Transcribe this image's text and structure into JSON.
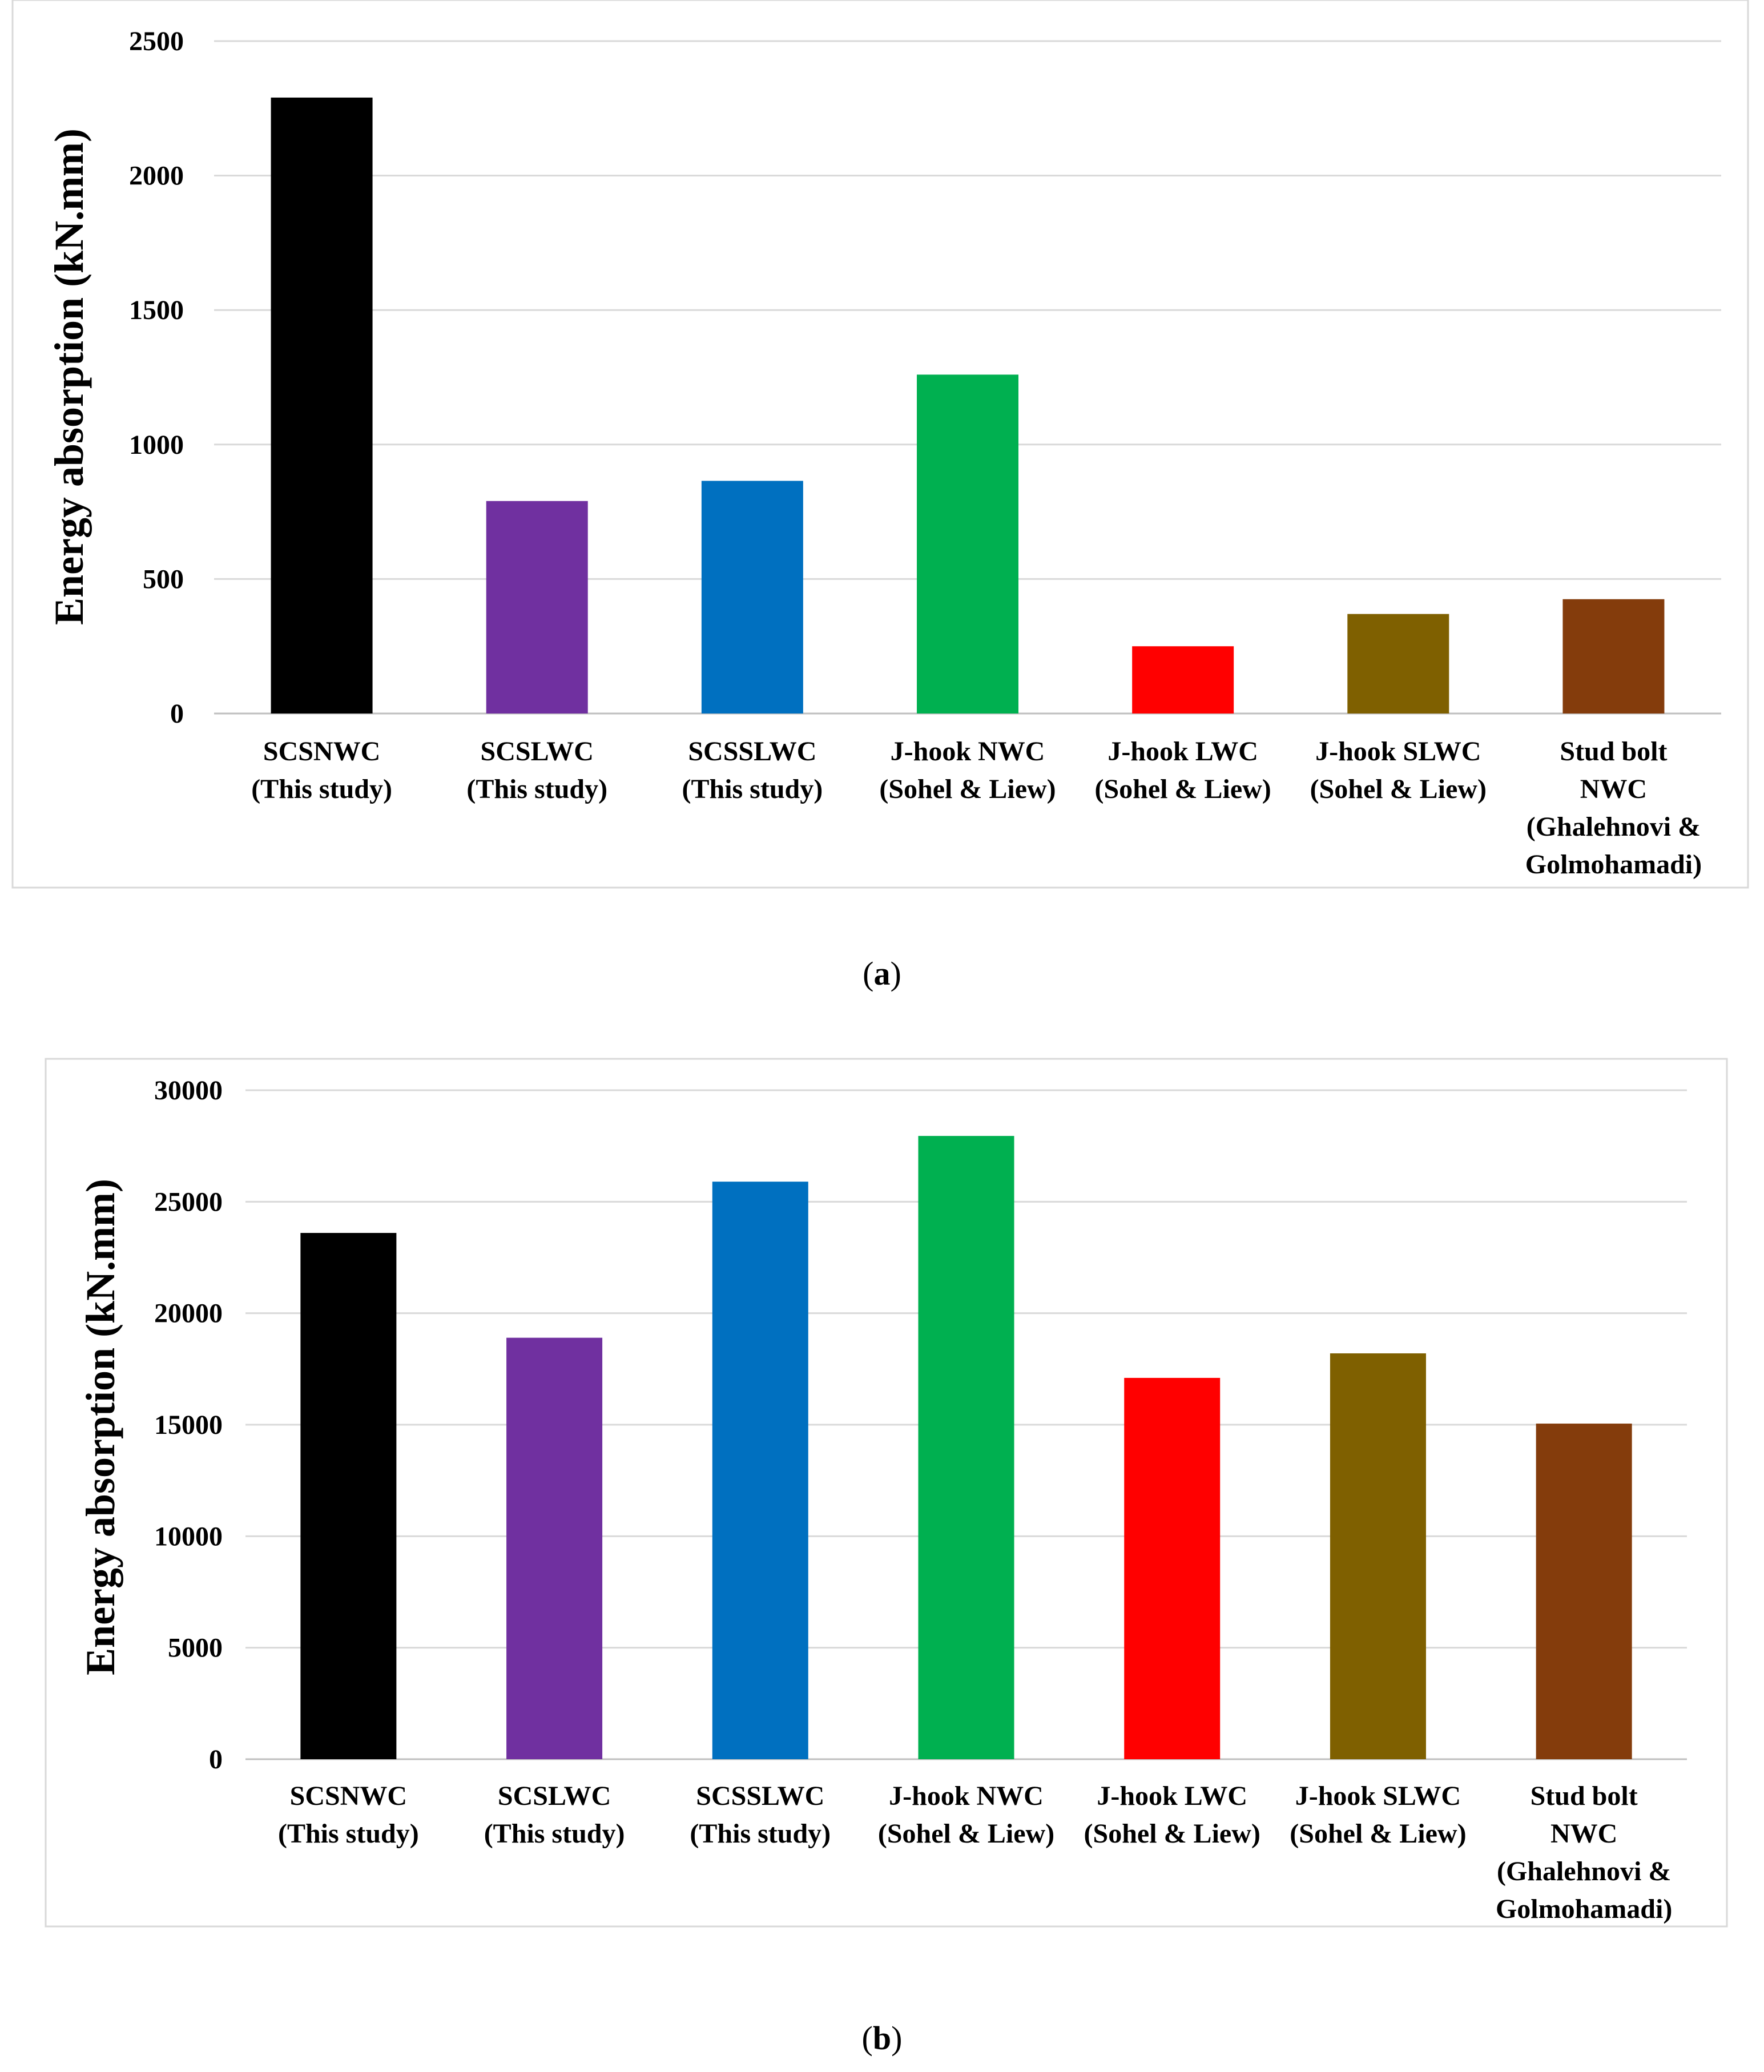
{
  "chart_data": [
    {
      "type": "bar",
      "panel_label": "a",
      "ylabel": "Energy absorption (kN.mm)",
      "xlabel": "",
      "ylim": [
        0,
        2500
      ],
      "yticks": [
        0,
        500,
        1000,
        1500,
        2000,
        2500
      ],
      "grid": true,
      "categories": [
        [
          "SCSNWC",
          "(This study)"
        ],
        [
          "SCSLWC",
          "(This study)"
        ],
        [
          "SCSSLWC",
          "(This study)"
        ],
        [
          "J-hook NWC",
          "(Sohel & Liew)"
        ],
        [
          "J-hook LWC",
          "(Sohel & Liew)"
        ],
        [
          "J-hook SLWC",
          "(Sohel & Liew)"
        ],
        [
          "Stud bolt",
          "NWC",
          "(Ghalehnovi &",
          "Golmohamadi)"
        ]
      ],
      "values": [
        2290,
        790,
        865,
        1260,
        250,
        370,
        425
      ],
      "colors": [
        "#000000",
        "#7030A0",
        "#0070C0",
        "#00B050",
        "#FF0000",
        "#7F6000",
        "#843C0C"
      ]
    },
    {
      "type": "bar",
      "panel_label": "b",
      "ylabel": "Energy absorption (kN.mm)",
      "xlabel": "",
      "ylim": [
        0,
        30000
      ],
      "yticks": [
        0,
        5000,
        10000,
        15000,
        20000,
        25000,
        30000
      ],
      "grid": true,
      "categories": [
        [
          "SCSNWC",
          "(This study)"
        ],
        [
          "SCSLWC",
          "(This study)"
        ],
        [
          "SCSSLWC",
          "(This study)"
        ],
        [
          "J-hook NWC",
          "(Sohel & Liew)"
        ],
        [
          "J-hook LWC",
          "(Sohel & Liew)"
        ],
        [
          "J-hook SLWC",
          "(Sohel & Liew)"
        ],
        [
          "Stud bolt",
          "NWC",
          "(Ghalehnovi &",
          "Golmohamadi)"
        ]
      ],
      "values": [
        23600,
        18900,
        25900,
        27950,
        17100,
        18200,
        15050
      ],
      "colors": [
        "#000000",
        "#7030A0",
        "#0070C0",
        "#00B050",
        "#FF0000",
        "#7F6000",
        "#843C0C"
      ]
    }
  ]
}
